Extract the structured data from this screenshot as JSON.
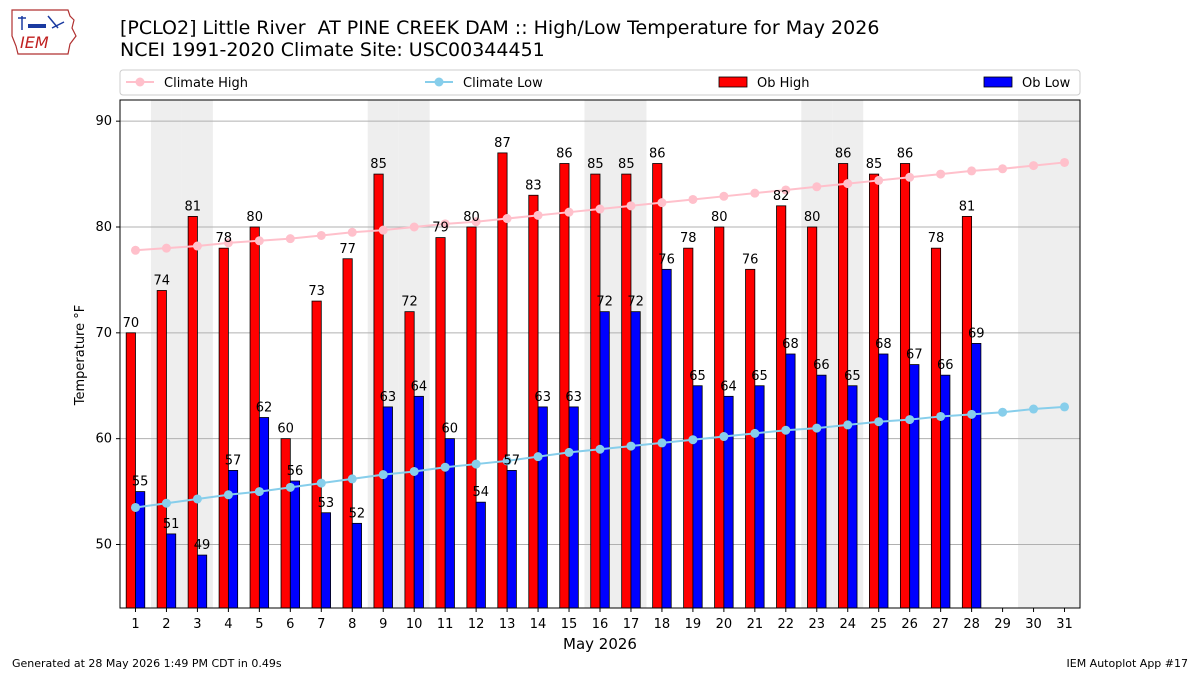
{
  "title": {
    "line1": "[PCLO2] Little River  AT PINE CREEK DAM :: High/Low Temperature for May 2026",
    "line2": "NCEI 1991-2020 Climate Site: USC00344451"
  },
  "logo": {
    "text": "IEM",
    "icon": "iowa-state-outline-logo"
  },
  "footer": {
    "left": "Generated at 28 May 2026 1:49 PM CDT in 0.49s",
    "right": "IEM Autoplot App #17"
  },
  "colors": {
    "ob_high": "#ff0000",
    "ob_low": "#0000ff",
    "climate_high": "#ffc0cb",
    "climate_low": "#87ceeb",
    "weekend_band": "#eeeeee",
    "grid": "#b0b0b0"
  },
  "chart_data": {
    "type": "bar",
    "xlabel": "May 2026",
    "ylabel": "Temperature °F",
    "ylim": [
      44,
      92
    ],
    "yticks": [
      50,
      60,
      70,
      80,
      90
    ],
    "grid": "horizontal",
    "legend_position": "top",
    "categories": [
      "1",
      "2",
      "3",
      "4",
      "5",
      "6",
      "7",
      "8",
      "9",
      "10",
      "11",
      "12",
      "13",
      "14",
      "15",
      "16",
      "17",
      "18",
      "19",
      "20",
      "21",
      "22",
      "23",
      "24",
      "25",
      "26",
      "27",
      "28",
      "29",
      "30",
      "31"
    ],
    "shaded_days": [
      2,
      3,
      9,
      10,
      16,
      17,
      23,
      24,
      30,
      31
    ],
    "series": [
      {
        "name": "Climate High",
        "type": "line",
        "values": [
          77.8,
          78.0,
          78.2,
          78.5,
          78.7,
          78.9,
          79.2,
          79.5,
          79.7,
          80.0,
          80.3,
          80.5,
          80.8,
          81.1,
          81.4,
          81.7,
          82.0,
          82.3,
          82.6,
          82.9,
          83.2,
          83.5,
          83.8,
          84.1,
          84.4,
          84.7,
          85.0,
          85.3,
          85.5,
          85.8,
          86.1
        ]
      },
      {
        "name": "Climate Low",
        "type": "line",
        "values": [
          53.5,
          53.9,
          54.3,
          54.7,
          55.0,
          55.4,
          55.8,
          56.2,
          56.6,
          56.9,
          57.3,
          57.6,
          57.9,
          58.3,
          58.7,
          59.0,
          59.3,
          59.6,
          59.9,
          60.2,
          60.5,
          60.8,
          61.0,
          61.3,
          61.6,
          61.8,
          62.1,
          62.3,
          62.5,
          62.8,
          63.0
        ]
      },
      {
        "name": "Ob High",
        "type": "bar",
        "values": [
          70,
          74,
          81,
          78,
          80,
          60,
          73,
          77,
          85,
          72,
          79,
          80,
          87,
          83,
          86,
          85,
          85,
          86,
          78,
          80,
          76,
          82,
          80,
          86,
          85,
          86,
          78,
          81,
          null,
          null,
          null
        ]
      },
      {
        "name": "Ob Low",
        "type": "bar",
        "values": [
          55,
          51,
          49,
          57,
          62,
          56,
          53,
          52,
          63,
          64,
          60,
          54,
          57,
          63,
          63,
          72,
          72,
          76,
          65,
          64,
          65,
          68,
          66,
          65,
          68,
          67,
          66,
          69,
          null,
          null,
          null
        ]
      }
    ]
  }
}
